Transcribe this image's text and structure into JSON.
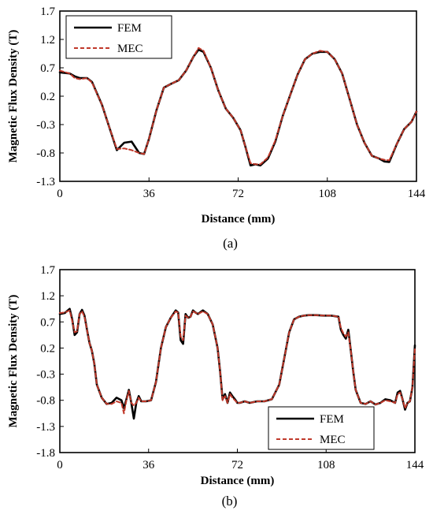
{
  "chart_data": [
    {
      "type": "line",
      "panel_label": "(a)",
      "xlabel": "Distance (mm)",
      "ylabel": "Magnetic Flux Density (T)",
      "xlim": [
        0,
        144
      ],
      "ylim": [
        -1.3,
        1.7
      ],
      "xticks": [
        0,
        36,
        72,
        108,
        144
      ],
      "yticks": [
        -1.3,
        -0.8,
        -0.3,
        0.2,
        0.7,
        1.2,
        1.7
      ],
      "xtick_labels": [
        "0",
        "36",
        "72",
        "108",
        "144"
      ],
      "ytick_labels": [
        "-1.3",
        "-0.8",
        "-0.3",
        "0.2",
        "0.7",
        "1.2",
        "1.7"
      ],
      "grid": false,
      "legend_position": "top-left",
      "series": [
        {
          "name": "FEM",
          "color": "#000000",
          "style": "solid",
          "x": [
            0,
            4,
            6,
            8,
            11,
            13,
            17,
            20,
            23,
            26,
            29,
            32,
            34,
            36,
            39,
            42,
            45,
            48,
            51,
            54,
            56,
            58,
            61,
            64,
            67,
            70,
            73,
            75,
            77,
            79,
            81,
            84,
            87,
            90,
            93,
            96,
            99,
            102,
            105,
            108,
            111,
            114,
            117,
            120,
            123,
            126,
            129,
            131,
            133,
            136,
            139,
            142,
            144
          ],
          "y": [
            0.62,
            0.6,
            0.55,
            0.52,
            0.52,
            0.45,
            0.05,
            -0.35,
            -0.75,
            -0.62,
            -0.6,
            -0.8,
            -0.82,
            -0.55,
            -0.05,
            0.35,
            0.42,
            0.48,
            0.65,
            0.9,
            1.02,
            0.98,
            0.7,
            0.3,
            -0.02,
            -0.18,
            -0.4,
            -0.7,
            -1.02,
            -1.0,
            -1.02,
            -0.9,
            -0.6,
            -0.15,
            0.22,
            0.58,
            0.85,
            0.95,
            0.98,
            0.98,
            0.85,
            0.6,
            0.15,
            -0.3,
            -0.62,
            -0.85,
            -0.9,
            -0.95,
            -0.96,
            -0.65,
            -0.38,
            -0.25,
            -0.07
          ]
        },
        {
          "name": "MEC",
          "color": "#c0392b",
          "style": "dashed",
          "x": [
            0,
            4,
            6,
            8,
            11,
            13,
            17,
            20,
            23,
            26,
            29,
            32,
            34,
            36,
            39,
            42,
            45,
            48,
            51,
            54,
            56,
            58,
            61,
            64,
            67,
            70,
            73,
            75,
            77,
            79,
            81,
            84,
            87,
            90,
            93,
            96,
            99,
            102,
            105,
            108,
            111,
            114,
            117,
            120,
            123,
            126,
            129,
            131,
            133,
            136,
            139,
            142,
            144
          ],
          "y": [
            0.65,
            0.6,
            0.52,
            0.5,
            0.52,
            0.44,
            0.05,
            -0.35,
            -0.73,
            -0.72,
            -0.75,
            -0.8,
            -0.82,
            -0.55,
            -0.05,
            0.35,
            0.42,
            0.48,
            0.65,
            0.9,
            1.05,
            1.0,
            0.7,
            0.3,
            -0.02,
            -0.18,
            -0.4,
            -0.7,
            -0.98,
            -1.0,
            -1.0,
            -0.88,
            -0.58,
            -0.15,
            0.22,
            0.58,
            0.85,
            0.95,
            1.0,
            0.98,
            0.85,
            0.6,
            0.15,
            -0.3,
            -0.62,
            -0.85,
            -0.9,
            -0.92,
            -0.93,
            -0.65,
            -0.38,
            -0.25,
            -0.07
          ]
        }
      ]
    },
    {
      "type": "line",
      "panel_label": "(b)",
      "xlabel": "Distance (mm)",
      "ylabel": "Magnetic Flux Density (T)",
      "xlim": [
        0,
        144
      ],
      "ylim": [
        -1.8,
        1.7
      ],
      "xticks": [
        0,
        36,
        72,
        108,
        144
      ],
      "yticks": [
        -1.8,
        -1.3,
        -0.8,
        -0.3,
        0.2,
        0.7,
        1.2,
        1.7
      ],
      "xtick_labels": [
        "0",
        "36",
        "72",
        "108",
        "144"
      ],
      "ytick_labels": [
        "-1.8",
        "-1.3",
        "-0.8",
        "-0.3",
        "0.2",
        "0.7",
        "1.2",
        "1.7"
      ],
      "grid": false,
      "legend_position": "bottom-right",
      "series": [
        {
          "name": "FEM",
          "color": "#000000",
          "style": "solid",
          "x": [
            0,
            2,
            4,
            5,
            6,
            7,
            8,
            9,
            10,
            11,
            12,
            13,
            14,
            15,
            17,
            19,
            21,
            23,
            25,
            26,
            27,
            28,
            29,
            30,
            31,
            32,
            33,
            35,
            37,
            39,
            41,
            43,
            45,
            47,
            48,
            49,
            50,
            51,
            52,
            53,
            54,
            55,
            56,
            58,
            60,
            62,
            64,
            65,
            66,
            67,
            68,
            69,
            70,
            71,
            72,
            73,
            75,
            77,
            80,
            83,
            86,
            89,
            91,
            93,
            95,
            97,
            99,
            101,
            104,
            107,
            110,
            113,
            114,
            115,
            116,
            117,
            118,
            119,
            120,
            122,
            124,
            126,
            128,
            130,
            132,
            134,
            136,
            137,
            138,
            139,
            140,
            141,
            142,
            143,
            144
          ],
          "y": [
            0.85,
            0.87,
            0.95,
            0.75,
            0.45,
            0.5,
            0.85,
            0.93,
            0.82,
            0.55,
            0.3,
            0.15,
            -0.1,
            -0.5,
            -0.75,
            -0.87,
            -0.85,
            -0.75,
            -0.8,
            -0.95,
            -0.78,
            -0.6,
            -0.85,
            -1.15,
            -0.85,
            -0.72,
            -0.82,
            -0.82,
            -0.8,
            -0.45,
            0.2,
            0.6,
            0.78,
            0.92,
            0.88,
            0.35,
            0.28,
            0.85,
            0.78,
            0.8,
            0.92,
            0.88,
            0.85,
            0.92,
            0.85,
            0.65,
            0.2,
            -0.25,
            -0.78,
            -0.68,
            -0.85,
            -0.65,
            -0.72,
            -0.78,
            -0.85,
            -0.85,
            -0.82,
            -0.85,
            -0.82,
            -0.82,
            -0.78,
            -0.5,
            0.0,
            0.5,
            0.75,
            0.8,
            0.82,
            0.83,
            0.83,
            0.82,
            0.82,
            0.8,
            0.55,
            0.45,
            0.38,
            0.55,
            0.15,
            -0.25,
            -0.6,
            -0.85,
            -0.87,
            -0.82,
            -0.88,
            -0.85,
            -0.78,
            -0.8,
            -0.85,
            -0.65,
            -0.62,
            -0.78,
            -0.98,
            -0.85,
            -0.82,
            -0.55,
            0.25
          ]
        },
        {
          "name": "MEC",
          "color": "#c0392b",
          "style": "dashed",
          "x": [
            0,
            2,
            4,
            5,
            6,
            7,
            8,
            9,
            10,
            11,
            12,
            13,
            14,
            15,
            17,
            19,
            21,
            23,
            25,
            26,
            27,
            28,
            29,
            30,
            31,
            32,
            33,
            35,
            37,
            39,
            41,
            43,
            45,
            47,
            48,
            49,
            50,
            51,
            52,
            53,
            54,
            55,
            56,
            58,
            60,
            62,
            64,
            65,
            66,
            67,
            68,
            69,
            70,
            71,
            72,
            73,
            75,
            77,
            80,
            83,
            86,
            89,
            91,
            93,
            95,
            97,
            99,
            101,
            104,
            107,
            110,
            113,
            114,
            115,
            116,
            117,
            118,
            119,
            120,
            122,
            124,
            126,
            128,
            130,
            132,
            134,
            136,
            137,
            138,
            139,
            140,
            141,
            142,
            143,
            144
          ],
          "y": [
            0.87,
            0.88,
            0.92,
            0.72,
            0.5,
            0.52,
            0.85,
            0.9,
            0.8,
            0.55,
            0.3,
            0.15,
            -0.1,
            -0.5,
            -0.75,
            -0.87,
            -0.87,
            -0.82,
            -0.85,
            -1.05,
            -0.8,
            -0.62,
            -0.85,
            -0.9,
            -0.85,
            -0.75,
            -0.82,
            -0.82,
            -0.8,
            -0.45,
            0.2,
            0.6,
            0.78,
            0.9,
            0.88,
            0.42,
            0.35,
            0.82,
            0.78,
            0.8,
            0.9,
            0.88,
            0.85,
            0.9,
            0.85,
            0.65,
            0.2,
            -0.25,
            -0.8,
            -0.72,
            -0.85,
            -0.68,
            -0.75,
            -0.8,
            -0.85,
            -0.85,
            -0.82,
            -0.85,
            -0.82,
            -0.82,
            -0.78,
            -0.5,
            0.0,
            0.5,
            0.75,
            0.8,
            0.82,
            0.83,
            0.83,
            0.82,
            0.82,
            0.8,
            0.58,
            0.48,
            0.42,
            0.5,
            0.15,
            -0.25,
            -0.6,
            -0.85,
            -0.87,
            -0.82,
            -0.88,
            -0.85,
            -0.8,
            -0.82,
            -0.85,
            -0.68,
            -0.65,
            -0.78,
            -0.95,
            -0.85,
            -0.82,
            -0.55,
            0.2
          ]
        }
      ]
    }
  ]
}
